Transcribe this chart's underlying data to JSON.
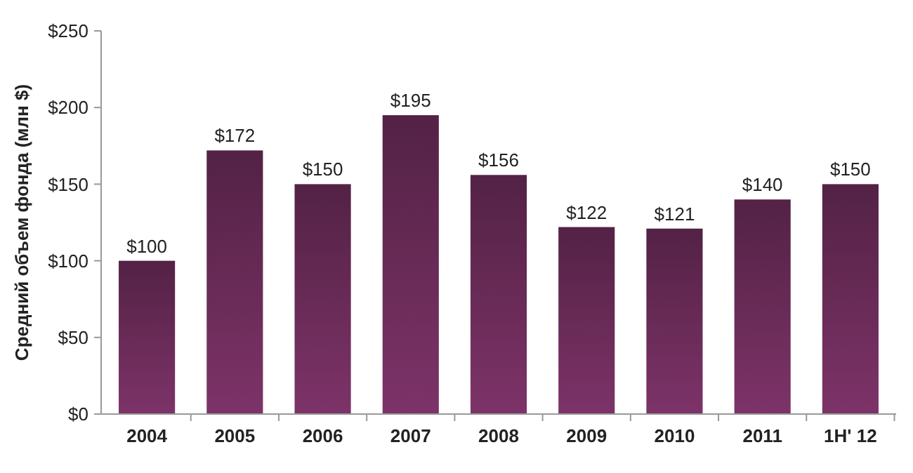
{
  "chart_data": {
    "type": "bar",
    "ylabel": "Средний объем фонда (млн $)",
    "categories": [
      "2004",
      "2005",
      "2006",
      "2007",
      "2008",
      "2009",
      "2010",
      "2011",
      "1H' 12"
    ],
    "values": [
      100,
      172,
      150,
      195,
      156,
      122,
      121,
      140,
      150
    ],
    "value_labels": [
      "$100",
      "$172",
      "$150",
      "$195",
      "$156",
      "$122",
      "$121",
      "$140",
      "$150"
    ],
    "color": "#6e2d5c",
    "ylim": [
      0,
      250
    ],
    "yticks": [
      {
        "value": 0,
        "label": "$0"
      },
      {
        "value": 50,
        "label": "$50"
      },
      {
        "value": 100,
        "label": "$100"
      },
      {
        "value": 150,
        "label": "$150"
      },
      {
        "value": 200,
        "label": "$200"
      },
      {
        "value": 250,
        "label": "$250"
      }
    ],
    "grid": false
  }
}
